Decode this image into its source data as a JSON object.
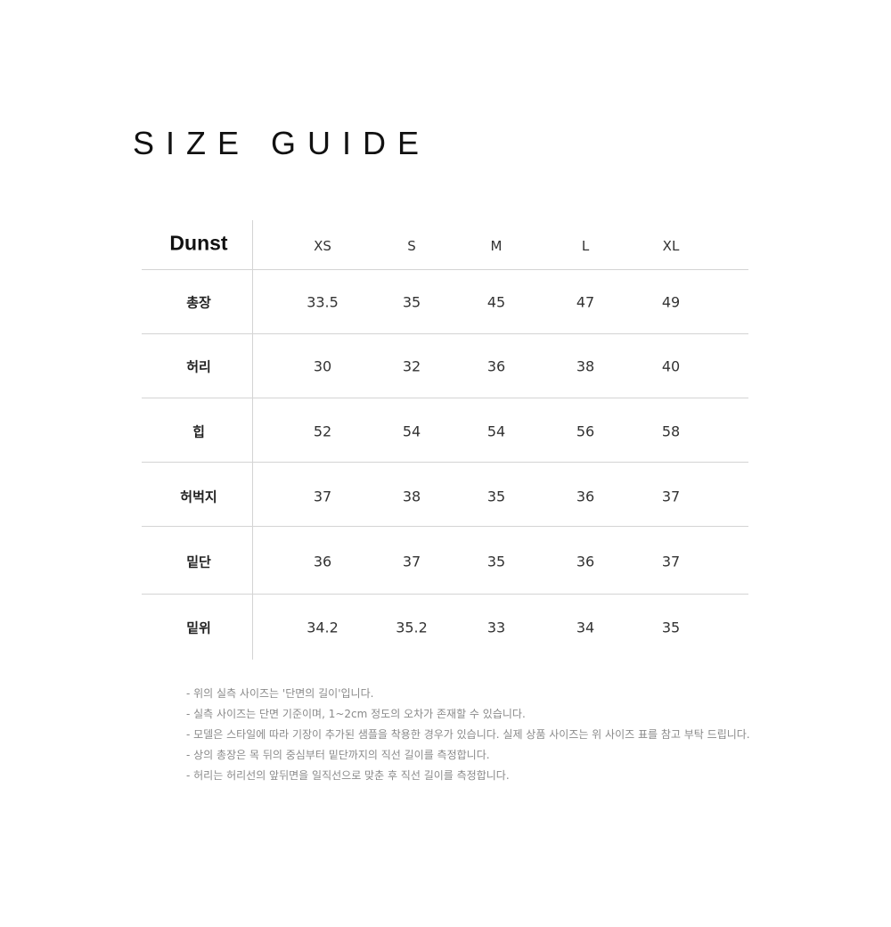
{
  "title": "SIZE GUIDE",
  "table": {
    "brand": "Dunst",
    "sizes": [
      "XS",
      "S",
      "M",
      "L",
      "XL"
    ],
    "rows": [
      {
        "label": "총장",
        "values": [
          "33.5",
          "35",
          "45",
          "47",
          "49"
        ]
      },
      {
        "label": "허리",
        "values": [
          "30",
          "32",
          "36",
          "38",
          "40"
        ]
      },
      {
        "label": "힙",
        "values": [
          "52",
          "54",
          "54",
          "56",
          "58"
        ]
      },
      {
        "label": "허벅지",
        "values": [
          "37",
          "38",
          "35",
          "36",
          "37"
        ]
      },
      {
        "label": "밑단",
        "values": [
          "36",
          "37",
          "35",
          "36",
          "37"
        ]
      },
      {
        "label": "밑위",
        "values": [
          "34.2",
          "35.2",
          "33",
          "34",
          "35"
        ]
      }
    ]
  },
  "notes": [
    "- 위의 실측 사이즈는 '단면의 길이'입니다.",
    "- 실측 사이즈는 단면 기준이며, 1~2cm 정도의 오차가 존재할 수 있습니다.",
    "- 모델은 스타일에 따라 기장이 추가된 샘플을 착용한 경우가 있습니다. 실제 상품 사이즈는 위 사이즈 표를 참고 부탁 드립니다.",
    "- 상의 총장은 목 뒤의 중심부터 밑단까지의 직선 길이를 측정합니다.",
    "- 허리는 허리선의 앞뒤면을 일직선으로 맞춘 후 직선 길이를 측정합니다."
  ]
}
